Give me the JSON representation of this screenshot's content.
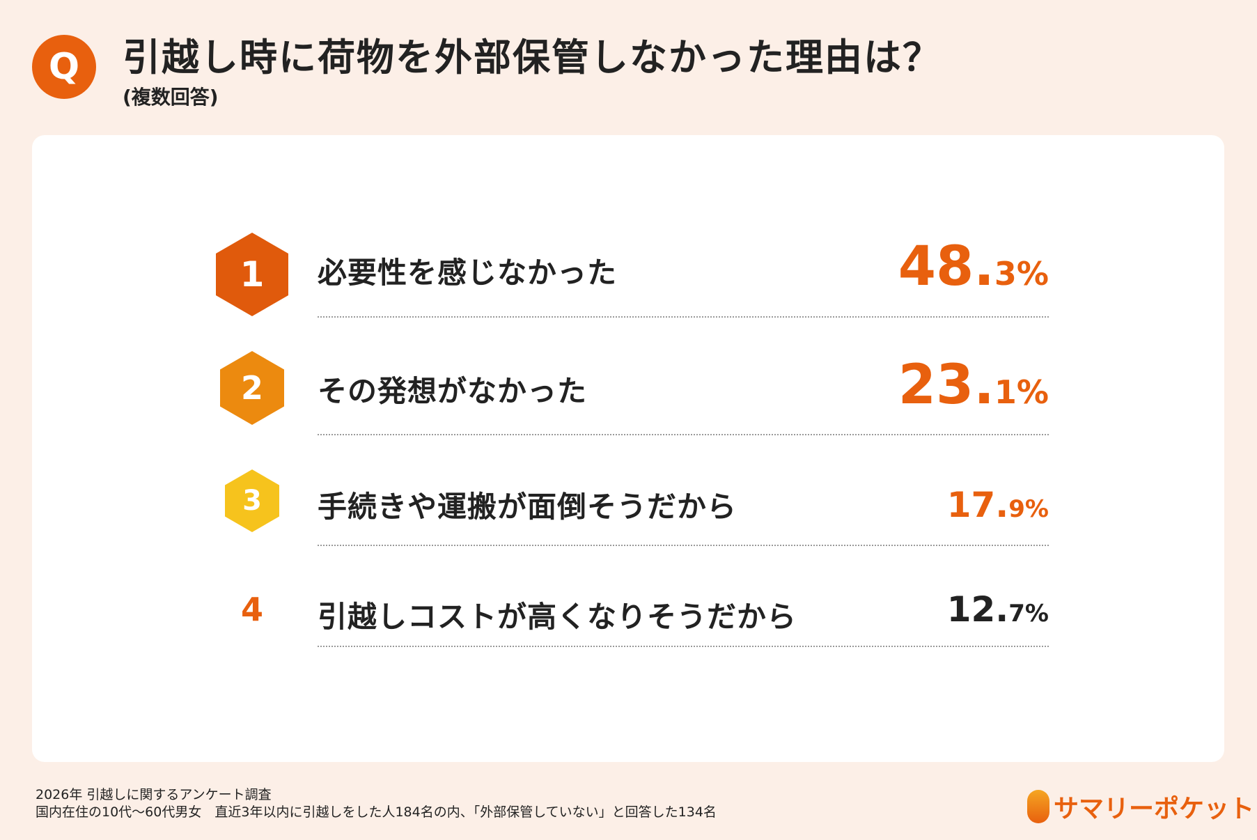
{
  "header": {
    "badge": "Q",
    "title": "引越し時に荷物を外部保管しなかった理由は？",
    "subtitle": "(複数回答)"
  },
  "colors": {
    "accent": "#e8600e",
    "rank1": "#e05a0c",
    "rank2": "#ec8a0f",
    "rank3": "#f6c31d",
    "background": "#fcefe7"
  },
  "ranking": [
    {
      "rank": "1",
      "label": "必要性を感じなかった",
      "int": "48.",
      "dec": "3%",
      "value": 48.3
    },
    {
      "rank": "2",
      "label": "その発想がなかった",
      "int": "23.",
      "dec": "1%",
      "value": 23.1
    },
    {
      "rank": "3",
      "label": "手続きや運搬が面倒そうだから",
      "int": "17.",
      "dec": "9%",
      "value": 17.9
    },
    {
      "rank": "4",
      "label": "引越しコストが高くなりそうだから",
      "int": "12.",
      "dec": "7%",
      "value": 12.7
    }
  ],
  "footer": {
    "line1": "2026年 引越しに関するアンケート調査",
    "line2": "国内在住の10代〜60代男女　直近3年以内に引越しをした人184名の内、「外部保管していない」と回答した134名",
    "logo": "サマリーポケット"
  }
}
